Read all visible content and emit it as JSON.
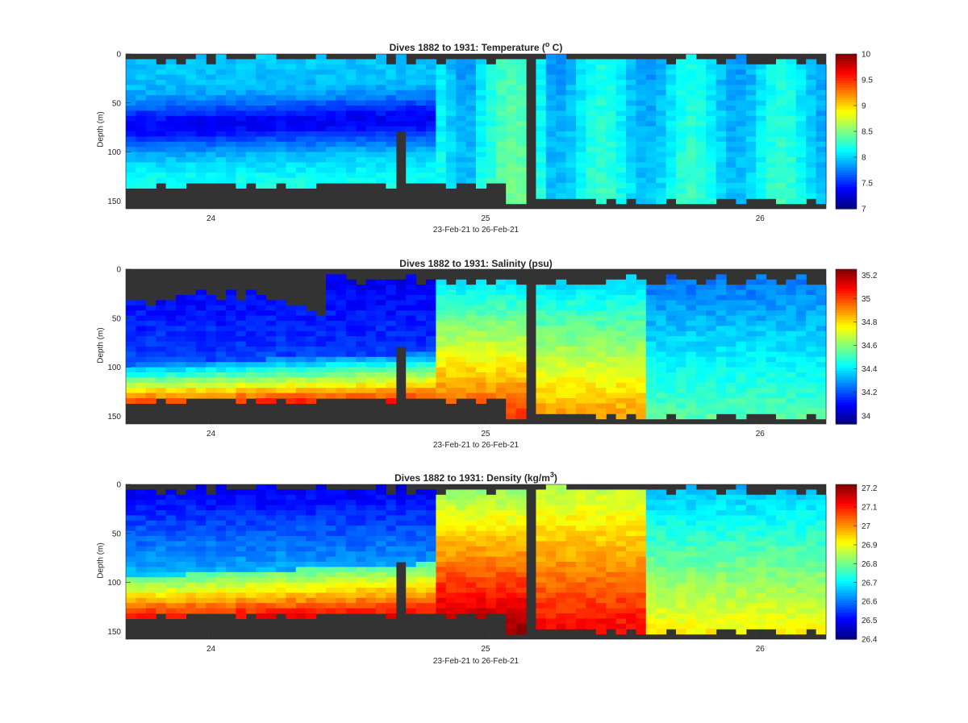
{
  "chart_data": [
    {
      "type": "heatmap",
      "title_text": "Dives 1882 to 1931: Temperature (",
      "title_sup": "o",
      "title_end": " C)",
      "xlabel": "23-Feb-21 to 26-Feb-21",
      "ylabel": "Depth (m)",
      "xticks": [
        24,
        25,
        26
      ],
      "xlim": [
        23.69,
        26.24
      ],
      "yticks": [
        0,
        50,
        100,
        150
      ],
      "ylim": [
        0,
        158
      ],
      "colorbar_ticks": [
        "10",
        "9.5",
        "9",
        "8.5",
        "8",
        "7.5",
        "7"
      ],
      "clim": [
        7,
        10
      ],
      "colormap": "jet",
      "missing_color": "#333333"
    },
    {
      "type": "heatmap",
      "title_text": "Dives 1882 to 1931: Salinity (psu)",
      "title_sup": "",
      "title_end": "",
      "xlabel": "23-Feb-21 to 26-Feb-21",
      "ylabel": "Depth (m)",
      "xticks": [
        24,
        25,
        26
      ],
      "xlim": [
        23.69,
        26.24
      ],
      "yticks": [
        0,
        50,
        100,
        150
      ],
      "ylim": [
        0,
        158
      ],
      "colorbar_ticks": [
        "35.2",
        "35",
        "34.8",
        "34.6",
        "34.4",
        "34.2",
        "34"
      ],
      "clim": [
        33.93,
        35.25
      ],
      "colormap": "jet",
      "missing_color": "#333333"
    },
    {
      "type": "heatmap",
      "title_text": "Dives 1882 to 1931: Density (kg/m",
      "title_sup": "3",
      "title_end": ")",
      "xlabel": "23-Feb-21 to 26-Feb-21",
      "ylabel": "Depth (m)",
      "xticks": [
        24,
        25,
        26
      ],
      "xlim": [
        23.69,
        26.24
      ],
      "yticks": [
        0,
        50,
        100,
        150
      ],
      "ylim": [
        0,
        158
      ],
      "colorbar_ticks": [
        "27.2",
        "27.1",
        "27",
        "26.9",
        "26.8",
        "26.7",
        "26.6",
        "26.5",
        "26.4"
      ],
      "clim": [
        26.4,
        27.22
      ],
      "colormap": "jet",
      "missing_color": "#333333"
    }
  ]
}
